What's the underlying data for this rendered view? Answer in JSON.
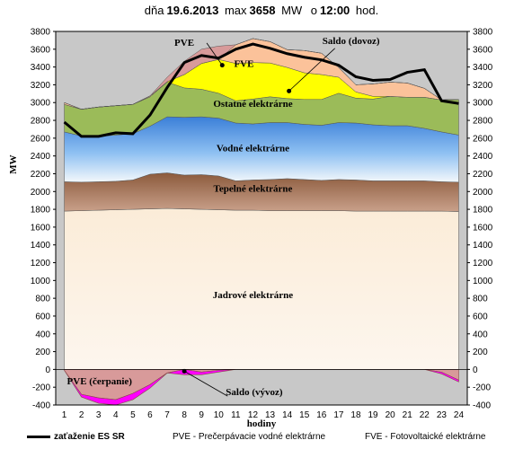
{
  "header": {
    "prefix": "dňa",
    "date": "19.6.2013",
    "max_prefix": "max",
    "max_value": "3658",
    "max_unit": "MW",
    "time_prefix": "o",
    "time": "12:00",
    "time_suffix": "hod."
  },
  "legend": {
    "load": "zaťaženie ES SR",
    "pve": "PVE - Prečerpávacie vodné elektrárne",
    "fve": "FVE - Fotovoltaické elektrárne"
  },
  "chart_data": {
    "type": "area",
    "stacked": true,
    "xlabel": "hodiny",
    "ylabel": "MW",
    "ylim": [
      -400,
      3800
    ],
    "y_ticks": [
      -400,
      -200,
      0,
      200,
      400,
      600,
      800,
      1000,
      1200,
      1400,
      1600,
      1800,
      2000,
      2200,
      2400,
      2600,
      2800,
      3000,
      3200,
      3400,
      3600,
      3800
    ],
    "x": [
      1,
      2,
      3,
      4,
      5,
      6,
      7,
      8,
      9,
      10,
      11,
      12,
      13,
      14,
      15,
      16,
      17,
      18,
      19,
      20,
      21,
      22,
      23,
      24
    ],
    "y_axes": "both",
    "grid": true,
    "series": [
      {
        "name": "Jadrové elektrárne",
        "color": "#fbf0df",
        "values": [
          1780,
          1785,
          1790,
          1795,
          1800,
          1805,
          1810,
          1805,
          1800,
          1795,
          1790,
          1790,
          1785,
          1785,
          1785,
          1785,
          1785,
          1780,
          1780,
          1780,
          1780,
          1780,
          1780,
          1775
        ]
      },
      {
        "name": "Tepelné elektrárne",
        "color": "#9a6a4d",
        "values": [
          330,
          320,
          320,
          320,
          330,
          390,
          400,
          380,
          390,
          380,
          330,
          340,
          350,
          360,
          350,
          340,
          350,
          350,
          340,
          340,
          340,
          340,
          330,
          330
        ]
      },
      {
        "name": "Vodné elektrárne",
        "color": "#3f8be0",
        "values": [
          560,
          520,
          510,
          520,
          520,
          540,
          630,
          650,
          650,
          650,
          650,
          630,
          640,
          630,
          620,
          620,
          640,
          640,
          630,
          620,
          620,
          590,
          560,
          530
        ]
      },
      {
        "name": "Ostatné elektrárne",
        "color": "#9bbb59",
        "values": [
          310,
          300,
          330,
          330,
          330,
          330,
          390,
          330,
          310,
          280,
          250,
          280,
          290,
          270,
          280,
          290,
          330,
          280,
          290,
          330,
          320,
          350,
          360,
          400
        ]
      },
      {
        "name": "FVE",
        "color": "#ffff00",
        "values": [
          0,
          0,
          0,
          0,
          0,
          0,
          5,
          150,
          290,
          380,
          420,
          410,
          380,
          350,
          300,
          280,
          180,
          70,
          30,
          0,
          0,
          0,
          0,
          0
        ]
      },
      {
        "name": "Saldo (dovoz)",
        "color": "#fbc29a",
        "values": [
          20,
          0,
          0,
          0,
          0,
          10,
          0,
          0,
          0,
          0,
          210,
          270,
          240,
          200,
          250,
          240,
          110,
          80,
          140,
          160,
          160,
          100,
          0,
          0
        ]
      },
      {
        "name": "PVE",
        "color": "#d89a9a",
        "values": [
          0,
          0,
          0,
          0,
          0,
          0,
          50,
          150,
          160,
          150,
          0,
          0,
          0,
          0,
          0,
          0,
          0,
          0,
          0,
          0,
          0,
          0,
          0,
          0
        ]
      },
      {
        "name": "PVE (čerpanie)",
        "color": "#d89a9a",
        "values": [
          -10,
          -280,
          -320,
          -340,
          -270,
          -170,
          -40,
          0,
          -30,
          -10,
          0,
          0,
          0,
          0,
          0,
          0,
          0,
          0,
          0,
          0,
          0,
          0,
          -30,
          -120
        ]
      },
      {
        "name": "Saldo (vývoz)",
        "color": "#ff00ff",
        "values": [
          0,
          -30,
          -60,
          -60,
          -70,
          -40,
          0,
          -60,
          -30,
          -20,
          0,
          0,
          0,
          0,
          0,
          0,
          0,
          0,
          0,
          0,
          0,
          0,
          -20,
          -20
        ]
      }
    ],
    "load_line": {
      "name": "zaťaženie ES SR",
      "color": "#000000",
      "values": [
        2780,
        2620,
        2620,
        2660,
        2650,
        2860,
        3170,
        3450,
        3530,
        3500,
        3600,
        3658,
        3610,
        3550,
        3510,
        3480,
        3420,
        3290,
        3250,
        3260,
        3340,
        3370,
        3020,
        2990
      ]
    },
    "area_labels": [
      "Jadrové elektrárne",
      "Tepelné elektrárne",
      "Vodné elektrárne",
      "Ostatné elektrárne",
      "FVE",
      "PVE",
      "Saldo (dovoz)",
      "PVE  (čerpanie)",
      "Saldo (vývoz)"
    ]
  }
}
